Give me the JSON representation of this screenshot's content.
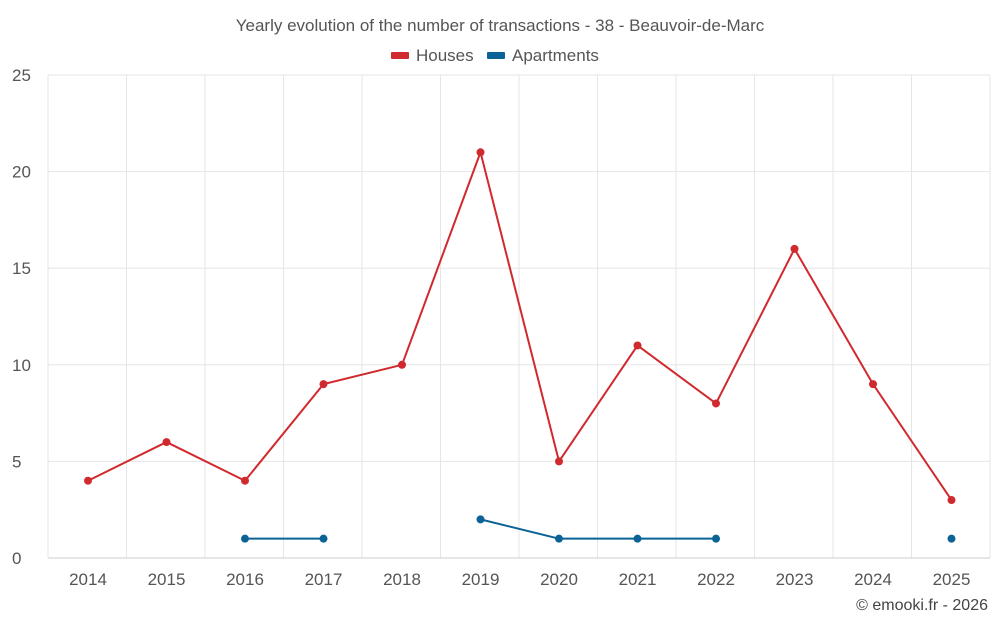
{
  "chart_data": {
    "type": "line",
    "title": "Yearly evolution of the number of transactions - 38 - Beauvoir-de-Marc",
    "categories": [
      "2014",
      "2015",
      "2016",
      "2017",
      "2018",
      "2019",
      "2020",
      "2021",
      "2022",
      "2023",
      "2024",
      "2025"
    ],
    "series": [
      {
        "name": "Houses",
        "color": "#d0292e",
        "values": [
          4,
          6,
          4,
          9,
          10,
          21,
          5,
          11,
          8,
          16,
          9,
          3
        ]
      },
      {
        "name": "Apartments",
        "color": "#0b6296",
        "values": [
          null,
          null,
          1,
          1,
          null,
          2,
          1,
          1,
          1,
          null,
          null,
          1
        ]
      }
    ],
    "ylim": [
      0,
      25
    ],
    "yticks": [
      0,
      5,
      10,
      15,
      20,
      25
    ],
    "grid": true,
    "legend_position": "top-center",
    "xlabel": "",
    "ylabel": ""
  },
  "credit": "© emooki.fr - 2026"
}
